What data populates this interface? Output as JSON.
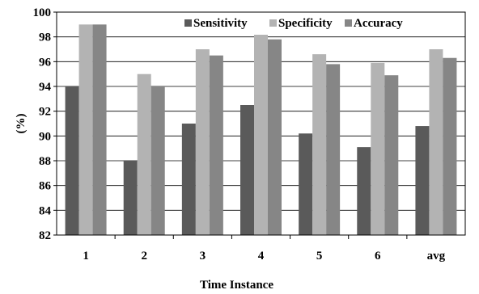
{
  "chart_data": {
    "type": "bar",
    "title": "",
    "xlabel": "Time Instance",
    "ylabel": "(%)",
    "ylim": [
      82,
      100
    ],
    "yticks": [
      82,
      84,
      86,
      88,
      90,
      92,
      94,
      96,
      98,
      100
    ],
    "grid": "horizontal",
    "legend_position": "top-right",
    "categories": [
      "1",
      "2",
      "3",
      "4",
      "5",
      "6",
      "avg"
    ],
    "series": [
      {
        "name": "Sensitivity",
        "color": "#5a5a5a",
        "values": [
          94.0,
          88.0,
          91.0,
          92.5,
          90.2,
          89.1,
          90.8
        ]
      },
      {
        "name": "Specificity",
        "color": "#b3b3b3",
        "values": [
          99.0,
          95.0,
          97.0,
          98.4,
          96.6,
          95.9,
          97.0
        ]
      },
      {
        "name": "Accuracy",
        "color": "#868686",
        "values": [
          99.0,
          94.0,
          96.5,
          97.8,
          95.8,
          94.9,
          96.3
        ]
      }
    ]
  }
}
